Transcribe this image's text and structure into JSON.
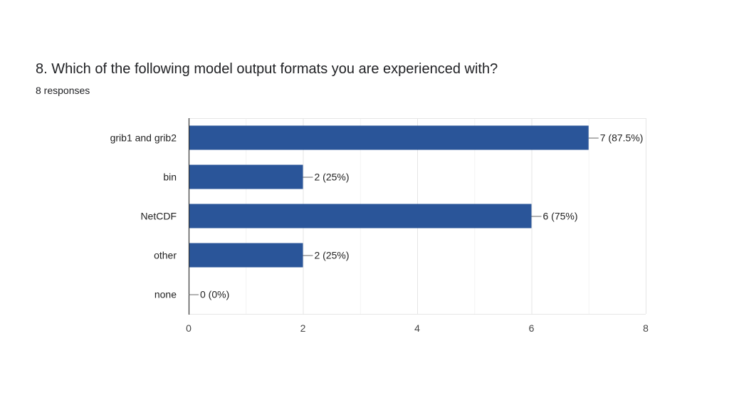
{
  "question": {
    "title": "8. Which of the following model output formats you are experienced with?",
    "responses": "8 responses"
  },
  "colors": {
    "bar": "#2a5599",
    "grid": "#e6e6e6",
    "axis": "#333333",
    "leader": "#666666"
  },
  "chart_data": {
    "type": "bar",
    "orientation": "horizontal",
    "categories": [
      "grib1 and grib2",
      "bin",
      "NetCDF",
      "other",
      "none"
    ],
    "values": [
      7,
      2,
      6,
      2,
      0
    ],
    "data_labels": [
      "7 (87.5%)",
      "2 (25%)",
      "6 (75%)",
      "2 (25%)",
      "0 (0%)"
    ],
    "xlim": [
      0,
      8
    ],
    "xticks": [
      0,
      2,
      4,
      6,
      8
    ],
    "grid": true,
    "legend": "none"
  }
}
